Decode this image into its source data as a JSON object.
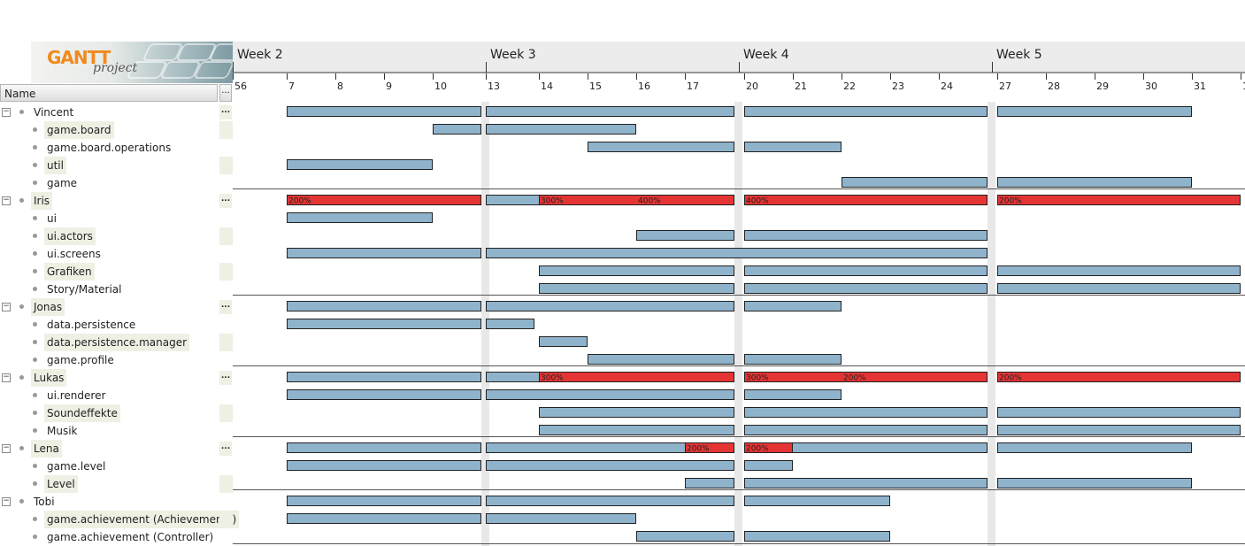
{
  "logo": {
    "word": "GANTT",
    "sub": "project"
  },
  "tree_header": {
    "name_label": "Name",
    "more_label": "..."
  },
  "timeline": {
    "weeks": [
      "Week 2",
      "Week 3",
      "Week 4",
      "Week 5"
    ],
    "days": [
      "56",
      "7",
      "8",
      "9",
      "10",
      "13",
      "14",
      "15",
      "16",
      "17",
      "20",
      "21",
      "22",
      "23",
      "24",
      "27",
      "28",
      "29",
      "30",
      "31",
      "1"
    ]
  },
  "colors": {
    "task": "#8fb3cb",
    "overload": "#e53434",
    "weekend": "#e8e8e8",
    "highlight": "#eef0e4"
  },
  "rows": [
    {
      "label": "Vincent",
      "level": 0,
      "hl": false,
      "more": true,
      "bars": [
        [
          7,
          11
        ],
        [
          13,
          17
        ],
        [
          20,
          24
        ],
        [
          27,
          30
        ]
      ],
      "over": []
    },
    {
      "label": "game.board",
      "level": 1,
      "hl": true,
      "bars": [
        [
          10,
          11
        ],
        [
          13,
          15
        ]
      ],
      "over": []
    },
    {
      "label": "game.board.operations",
      "level": 1,
      "hl": false,
      "bars": [
        [
          15,
          17
        ],
        [
          20,
          21
        ]
      ],
      "over": []
    },
    {
      "label": "util",
      "level": 1,
      "hl": true,
      "bars": [
        [
          7,
          9
        ]
      ],
      "over": []
    },
    {
      "label": "game",
      "level": 1,
      "hl": false,
      "bars": [
        [
          22,
          24
        ],
        [
          27,
          30
        ]
      ],
      "over": []
    },
    {
      "label": "Iris",
      "level": 0,
      "hl": true,
      "more": true,
      "bars": [
        [
          7,
          11
        ],
        [
          13,
          17
        ],
        [
          20,
          24
        ],
        [
          27,
          31
        ]
      ],
      "over": [
        {
          "s": 7,
          "e": 10,
          "t": "200%"
        },
        {
          "s": 14,
          "e": 17,
          "t": "300%"
        },
        {
          "s": 16,
          "e": 17,
          "t": "400%",
          "textOnly": true
        },
        {
          "s": 20,
          "e": 24,
          "t": "400%"
        },
        {
          "s": 27,
          "e": 31,
          "t": "200%"
        }
      ]
    },
    {
      "label": "ui",
      "level": 1,
      "hl": false,
      "bars": [
        [
          7,
          9
        ]
      ],
      "over": []
    },
    {
      "label": "ui.actors",
      "level": 1,
      "hl": true,
      "bars": [
        [
          16,
          17
        ],
        [
          20,
          24
        ]
      ],
      "over": []
    },
    {
      "label": "ui.screens",
      "level": 1,
      "hl": false,
      "bars": [
        [
          7,
          11
        ],
        [
          13,
          24
        ]
      ],
      "over": []
    },
    {
      "label": "Grafiken",
      "level": 1,
      "hl": true,
      "bars": [
        [
          14,
          17
        ],
        [
          20,
          24
        ],
        [
          27,
          31
        ]
      ],
      "over": []
    },
    {
      "label": "Story/Material",
      "level": 1,
      "hl": false,
      "bars": [
        [
          14,
          17
        ],
        [
          20,
          24
        ],
        [
          27,
          31
        ]
      ],
      "over": []
    },
    {
      "label": "Jonas",
      "level": 0,
      "hl": true,
      "more": true,
      "bars": [
        [
          7,
          11
        ],
        [
          13,
          17
        ],
        [
          20,
          21
        ]
      ],
      "over": []
    },
    {
      "label": "data.persistence",
      "level": 1,
      "hl": false,
      "bars": [
        [
          7,
          11
        ],
        [
          13,
          13
        ]
      ],
      "over": []
    },
    {
      "label": "data.persistence.manager",
      "level": 1,
      "hl": true,
      "bars": [
        [
          14,
          14
        ]
      ],
      "over": []
    },
    {
      "label": "game.profile",
      "level": 1,
      "hl": false,
      "bars": [
        [
          15,
          17
        ],
        [
          20,
          21
        ]
      ],
      "over": []
    },
    {
      "label": "Lukas",
      "level": 0,
      "hl": true,
      "more": true,
      "bars": [
        [
          7,
          11
        ],
        [
          13,
          17
        ],
        [
          20,
          24
        ],
        [
          27,
          31
        ]
      ],
      "over": [
        {
          "s": 14,
          "e": 17,
          "t": "300%"
        },
        {
          "s": 20,
          "e": 24,
          "t": "300%"
        },
        {
          "s": 22,
          "e": 24,
          "t": "200%",
          "textOnly": true
        },
        {
          "s": 27,
          "e": 31,
          "t": "200%"
        }
      ]
    },
    {
      "label": "ui.renderer",
      "level": 1,
      "hl": false,
      "bars": [
        [
          7,
          11
        ],
        [
          13,
          17
        ],
        [
          20,
          21
        ]
      ],
      "over": []
    },
    {
      "label": "Soundeffekte",
      "level": 1,
      "hl": true,
      "bars": [
        [
          14,
          17
        ],
        [
          20,
          24
        ],
        [
          27,
          31
        ]
      ],
      "over": []
    },
    {
      "label": "Musik",
      "level": 1,
      "hl": false,
      "bars": [
        [
          14,
          17
        ],
        [
          20,
          24
        ],
        [
          27,
          31
        ]
      ],
      "over": []
    },
    {
      "label": "Lena",
      "level": 0,
      "hl": true,
      "more": true,
      "bars": [
        [
          7,
          11
        ],
        [
          13,
          17
        ],
        [
          20,
          24
        ],
        [
          27,
          30
        ]
      ],
      "over": [
        {
          "s": 17,
          "e": 17,
          "t": "200%"
        },
        {
          "s": 20,
          "e": 20,
          "t": "200%"
        }
      ]
    },
    {
      "label": "game.level",
      "level": 1,
      "hl": false,
      "bars": [
        [
          7,
          11
        ],
        [
          13,
          17
        ],
        [
          20,
          20
        ]
      ],
      "over": []
    },
    {
      "label": "Level",
      "level": 1,
      "hl": true,
      "bars": [
        [
          17,
          17
        ],
        [
          20,
          24
        ],
        [
          27,
          30
        ]
      ],
      "over": []
    },
    {
      "label": "Tobi",
      "level": 0,
      "hl": false,
      "more": false,
      "bars": [
        [
          7,
          11
        ],
        [
          13,
          17
        ],
        [
          20,
          22
        ]
      ],
      "over": []
    },
    {
      "label": "game.achievement (Achievements)",
      "level": 1,
      "hl": true,
      "bars": [
        [
          7,
          11
        ],
        [
          13,
          15
        ]
      ],
      "over": []
    },
    {
      "label": "game.achievement (Controller)",
      "level": 1,
      "hl": false,
      "bars": [
        [
          16,
          17
        ],
        [
          20,
          22
        ]
      ],
      "over": []
    }
  ]
}
